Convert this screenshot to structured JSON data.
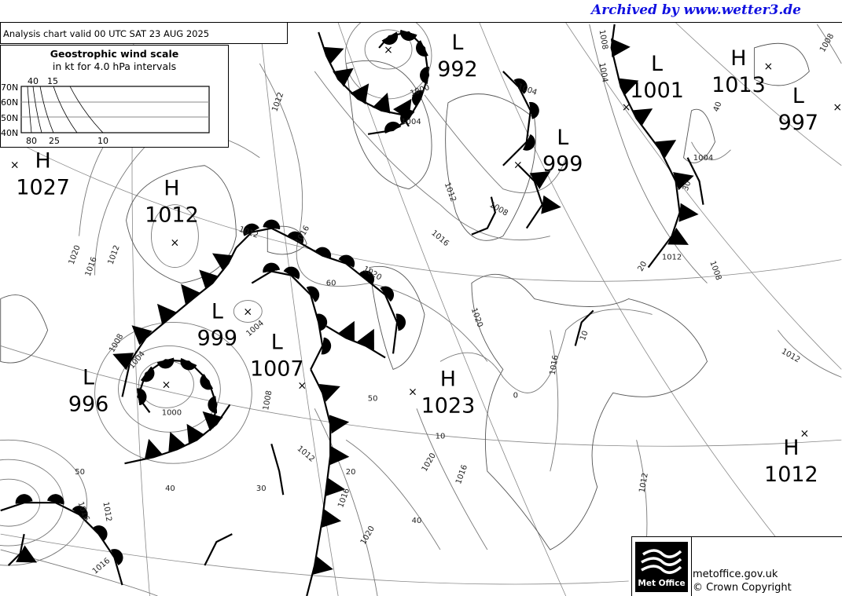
{
  "archive_label": "Archived by www.wetter3.de",
  "header": {
    "title": "Analysis chart  valid 00 UTC SAT 23  AUG 2025"
  },
  "wind_scale": {
    "title": "Geostrophic wind scale",
    "subtitle": "in kt for 4.0 hPa intervals",
    "latitudes": [
      "70N",
      "60N",
      "50N",
      "40N"
    ],
    "top_labels": [
      "40",
      "15"
    ],
    "bottom_labels": [
      "80",
      "25",
      "10"
    ]
  },
  "pressure_centres": [
    {
      "type": "L",
      "value": "992"
    },
    {
      "type": "L",
      "value": "1001"
    },
    {
      "type": "H",
      "value": "1013"
    },
    {
      "type": "L",
      "value": "997"
    },
    {
      "type": "L",
      "value": "999"
    },
    {
      "type": "H",
      "value": "1027"
    },
    {
      "type": "H",
      "value": "1012"
    },
    {
      "type": "L",
      "value": "999"
    },
    {
      "type": "L",
      "value": "1007"
    },
    {
      "type": "L",
      "value": "996"
    },
    {
      "type": "H",
      "value": "1023"
    },
    {
      "type": "H",
      "value": "1012"
    }
  ],
  "isobar_labels": [
    "1012",
    "1000",
    "1004",
    "1004",
    "1012",
    "1016",
    "1008",
    "1008",
    "1004",
    "1008",
    "1004",
    "1012",
    "1008",
    "1020",
    "1016",
    "1012",
    "1012",
    "1016",
    "1020",
    "60",
    "1004",
    "1008",
    "1004",
    "1000",
    "1008",
    "1012",
    "1016",
    "1020",
    "1020",
    "1016",
    "1020",
    "1016",
    "10",
    "1012",
    "1012",
    "1016",
    "1012",
    "1016",
    "50",
    "50",
    "40",
    "30",
    "20",
    "10",
    "40",
    "0",
    "30",
    "20",
    "40"
  ],
  "logo": {
    "brand": "Met Office",
    "url": "metoffice.gov.uk",
    "copyright": "© Crown Copyright"
  },
  "colors": {
    "archive": "#1010e0",
    "isobar": "#777777",
    "front": "#000000"
  }
}
